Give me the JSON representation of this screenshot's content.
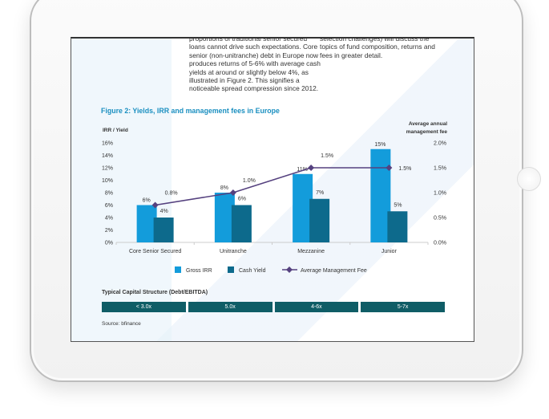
{
  "document": {
    "paragraph_left": "proportions of traditional senior secured loans cannot drive such expectations. Core senior (non-unitranche) debt in Europe now produces returns of 5-6% with average cash yields at around or slightly below 4%, as illustrated in Figure 2. This signifies a noticeable spread compression since 2012.",
    "paragraph_right": "selection challenges) will discuss the topics of fund composition, returns and fees in greater detail.",
    "figure_title": "Figure 2: Yields, IRR and management fees in Europe",
    "capital_structure_title": "Typical Capital Structure (Debt/EBITDA)",
    "capital_structure": [
      "< 3.0x",
      "5.0x",
      "4-6x",
      "5-7x"
    ],
    "source": "Source: bfinance"
  },
  "chart_data": {
    "type": "bar",
    "title": "Figure 2: Yields, IRR and management fees in Europe",
    "ylabel": "IRR / Yield",
    "y2label": "Average annual management fee",
    "ylim": [
      0,
      16
    ],
    "y2lim": [
      0,
      2.0
    ],
    "yticks": [
      "0%",
      "2%",
      "4%",
      "6%",
      "8%",
      "10%",
      "12%",
      "14%",
      "16%"
    ],
    "y2ticks": [
      "0.0%",
      "0.5%",
      "1.0%",
      "1.5%",
      "2.0%"
    ],
    "categories": [
      "Core Senior Secured",
      "Unitranche",
      "Mezzanine",
      "Junior"
    ],
    "grid": false,
    "legend_position": "bottom",
    "series": [
      {
        "name": "Gross IRR",
        "type": "bar",
        "axis": "left",
        "color": "#139cdb",
        "values": [
          6,
          8,
          11,
          15
        ],
        "labels": [
          "6%",
          "8%",
          "11%",
          "15%"
        ]
      },
      {
        "name": "Cash Yield",
        "type": "bar",
        "axis": "left",
        "color": "#0d6a8c",
        "values": [
          4,
          6,
          7,
          5
        ],
        "labels": [
          "4%",
          "6%",
          "7%",
          "5%"
        ]
      },
      {
        "name": "Average Management Fee",
        "type": "line",
        "axis": "right",
        "color": "#55417f",
        "values": [
          0.75,
          1.0,
          1.5,
          1.5
        ],
        "labels": [
          "0.8%",
          "1.0%",
          "1.5%",
          "1.5%"
        ]
      }
    ]
  }
}
